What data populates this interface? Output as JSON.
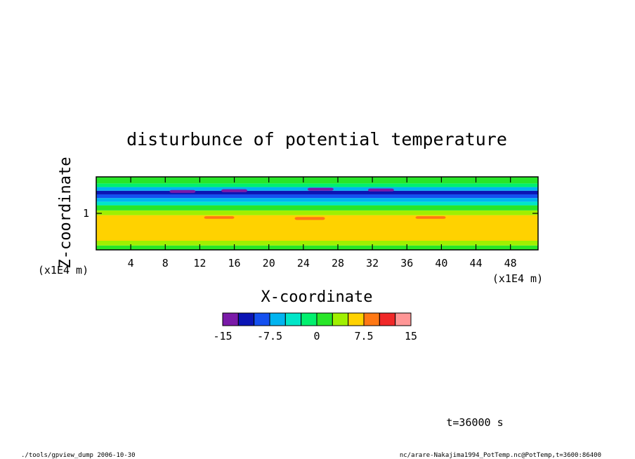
{
  "chart_data": {
    "type": "heatmap",
    "title": "disturbunce of potential temperature",
    "xlabel": "X-coordinate",
    "ylabel": "Z-coordinate",
    "x_unit": "(x1E4 m)",
    "y_unit": "(x1E4 m)",
    "xlim": [
      0,
      51.2
    ],
    "ylim": [
      0,
      2
    ],
    "x_ticks": [
      4,
      8,
      12,
      16,
      20,
      24,
      28,
      32,
      36,
      40,
      44,
      48
    ],
    "x_tick_labels": [
      "4",
      "8",
      "12",
      "16",
      "20",
      "24",
      "28",
      "32",
      "36",
      "40",
      "44",
      "48"
    ],
    "y_ticks": [
      1
    ],
    "y_tick_labels": [
      "1"
    ],
    "colorbar": {
      "levels": [
        -15,
        -12.5,
        -10,
        -7.5,
        -5,
        -2.5,
        0,
        2.5,
        5,
        7.5,
        10,
        12.5,
        15
      ],
      "labels": [
        "-15",
        "-7.5",
        "0",
        "7.5",
        "15"
      ],
      "label_values": [
        -15,
        -7.5,
        0,
        7.5,
        15
      ],
      "colors": [
        "#7a1aa8",
        "#0a14b4",
        "#1450f0",
        "#00b4f0",
        "#00e6c8",
        "#00f06e",
        "#28e628",
        "#a0f000",
        "#ffd200",
        "#ff7814",
        "#f02828",
        "#ff9696"
      ]
    },
    "bands": [
      {
        "z0": 0.0,
        "z1": 0.12,
        "value": 1
      },
      {
        "z0": 0.12,
        "z1": 0.25,
        "value": 3
      },
      {
        "z0": 0.25,
        "z1": 0.95,
        "value": 6.5
      },
      {
        "z0": 0.95,
        "z1": 1.08,
        "value": 4
      },
      {
        "z0": 1.08,
        "z1": 1.22,
        "value": 1
      },
      {
        "z0": 1.22,
        "z1": 1.32,
        "value": -3
      },
      {
        "z0": 1.32,
        "z1": 1.42,
        "value": -6
      },
      {
        "z0": 1.42,
        "z1": 1.52,
        "value": -9
      },
      {
        "z0": 1.52,
        "z1": 1.62,
        "value": -11
      },
      {
        "z0": 1.62,
        "z1": 1.72,
        "value": -6
      },
      {
        "z0": 1.72,
        "z1": 1.82,
        "value": -2
      },
      {
        "z0": 1.82,
        "z1": 2.0,
        "value": 0
      }
    ],
    "extremes": [
      {
        "x0": 14.5,
        "x1": 17.5,
        "z0": 1.58,
        "z1": 1.66,
        "value": -14
      },
      {
        "x0": 24.5,
        "x1": 27.5,
        "z0": 1.62,
        "z1": 1.7,
        "value": -14
      },
      {
        "x0": 31.5,
        "x1": 34.5,
        "z0": 1.6,
        "z1": 1.68,
        "value": -14
      },
      {
        "x0": 8.5,
        "x1": 11.5,
        "z0": 1.56,
        "z1": 1.64,
        "value": -13
      },
      {
        "x0": 12.5,
        "x1": 16.0,
        "z0": 0.85,
        "z1": 0.92,
        "value": 9
      },
      {
        "x0": 23.0,
        "x1": 26.5,
        "z0": 0.82,
        "z1": 0.9,
        "value": 9
      },
      {
        "x0": 37.0,
        "x1": 40.5,
        "z0": 0.85,
        "z1": 0.92,
        "value": 9
      }
    ],
    "annotation": "t=36000 s"
  },
  "footer": {
    "left": "./tools/gpview_dump  2006-10-30",
    "right": "nc/arare-Nakajima1994_PotTemp.nc@PotTemp,t=3600:86400"
  }
}
